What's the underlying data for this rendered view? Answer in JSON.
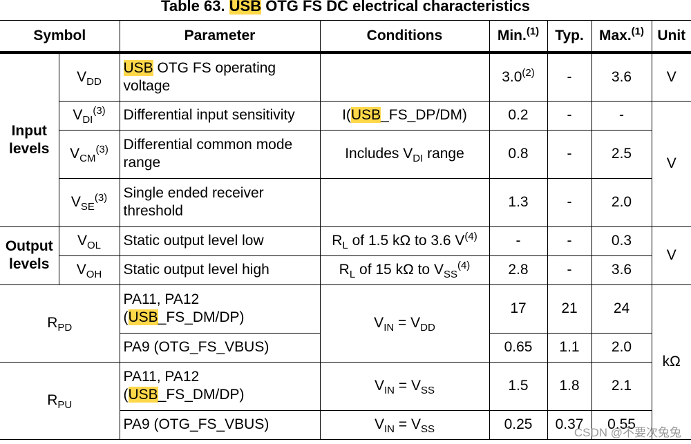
{
  "title": {
    "highlight": "USB",
    "rest": " OTG FS DC electrical characteristics",
    "prefix": "Table 63. "
  },
  "headers": {
    "symbol": "Symbol",
    "parameter": "Parameter",
    "conditions": "Conditions",
    "min": "Min.",
    "typ": "Typ.",
    "max": "Max.",
    "unit": "Unit",
    "note": "(1)"
  },
  "groups": {
    "input": "Input levels",
    "output": "Output levels"
  },
  "rows": {
    "vdd": {
      "sym": "V",
      "sub": "DD",
      "param_hl": "USB",
      "param": " OTG FS operating voltage",
      "min": "3.0",
      "min_note": "(2)",
      "typ": "-",
      "max": "3.6",
      "unit": "V"
    },
    "vdi": {
      "sym": "V",
      "sub": "DI",
      "note": "(3)",
      "param": "Differential input sensitivity",
      "cond_pre": "I(",
      "cond_hl": "USB",
      "cond_post": "_FS_DP/DM)",
      "min": "0.2",
      "typ": "-",
      "max": "-"
    },
    "vcm": {
      "sym": "V",
      "sub": "CM",
      "note": "(3)",
      "param": "Differential common mode range",
      "cond_pre": "Includes V",
      "cond_sub": "DI",
      "cond_post": " range",
      "min": "0.8",
      "typ": "-",
      "max": "2.5"
    },
    "vse": {
      "sym": "V",
      "sub": "SE",
      "note": "(3)",
      "param": "Single ended receiver threshold",
      "min": "1.3",
      "typ": "-",
      "max": "2.0"
    },
    "input_unit": "V",
    "vol": {
      "sym": "V",
      "sub": "OL",
      "param": "Static output level low",
      "cond_pre": "R",
      "cond_sub": "L",
      "cond_post": " of 1.5 kΩ to 3.6 V",
      "cond_note": "(4)",
      "min": "-",
      "typ": "-",
      "max": "0.3"
    },
    "voh": {
      "sym": "V",
      "sub": "OH",
      "param": "Static output level high",
      "cond_pre": "R",
      "cond_sub": "L",
      "cond_mid": " of 15 kΩ to V",
      "cond_sub2": "SS",
      "cond_note": "(4)",
      "min": "2.8",
      "typ": "-",
      "max": "3.6"
    },
    "output_unit": "V",
    "rpd": {
      "sym": "R",
      "sub": "PD",
      "p1_a": "PA11, PA12",
      "p1_pre": "(",
      "p1_hl": "USB",
      "p1_post": "_FS_DM/DP)",
      "cond_a": "V",
      "cond_sub_a": "IN",
      "cond_eq": " = V",
      "cond_sub_b": "DD",
      "min1": "17",
      "typ1": "21",
      "max1": "24",
      "p2": "PA9 (OTG_FS_VBUS)",
      "min2": "0.65",
      "typ2": "1.1",
      "max2": "2.0"
    },
    "res_unit": "kΩ",
    "rpu": {
      "sym": "R",
      "sub": "PU",
      "p1_a": "PA11, PA12",
      "p1_pre": "(",
      "p1_hl": "USB",
      "p1_post": "_FS_DM/DP)",
      "cond_a": "V",
      "cond_sub_a": "IN",
      "cond_eq": " = V",
      "cond_sub_b": "SS",
      "min1": "1.5",
      "typ1": "1.8",
      "max1": "2.1",
      "p2": "PA9 (OTG_FS_VBUS)",
      "cond2_a": "V",
      "cond2_sub_a": "IN",
      "cond2_eq": " = V",
      "cond2_sub_b": "SS",
      "min2": "0.25",
      "typ2": "0.37",
      "max2": "0.55"
    }
  },
  "watermark": "CSDN @不要次兔兔"
}
